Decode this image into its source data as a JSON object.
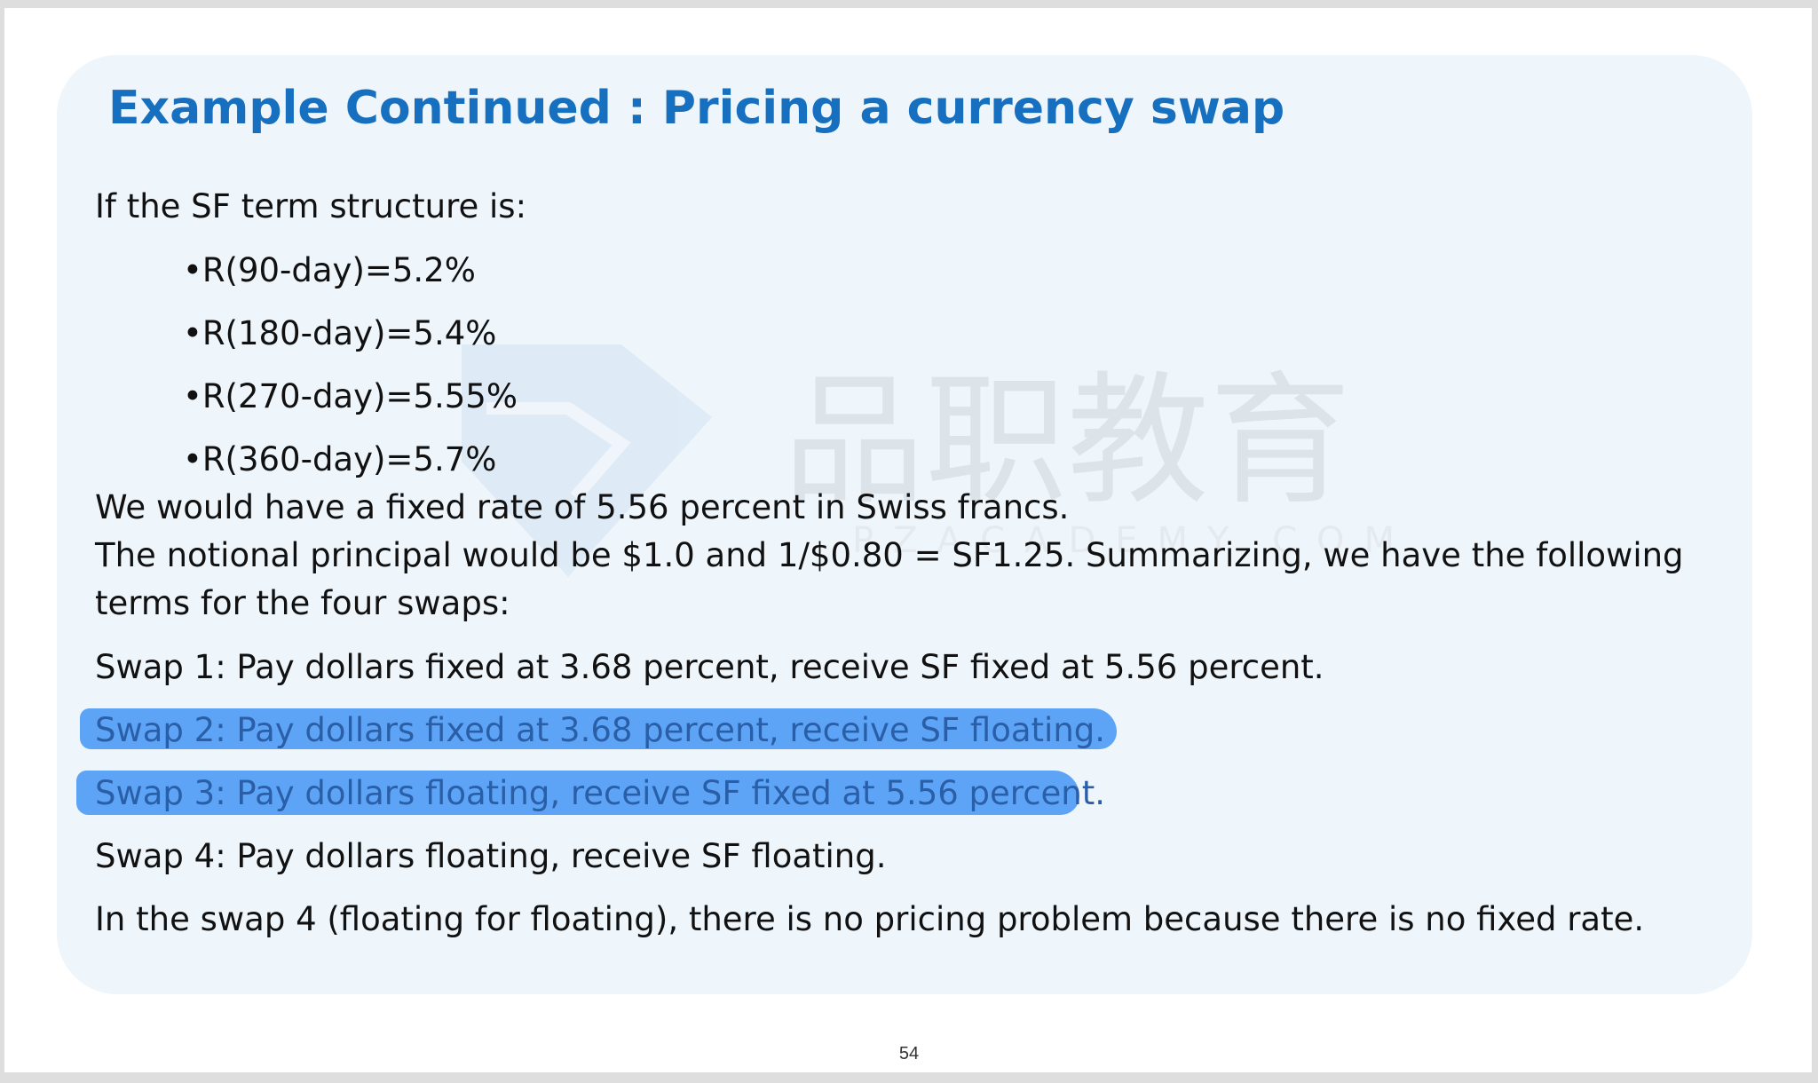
{
  "slide": {
    "title": "Example Continued : Pricing a currency swap",
    "intro": "If the SF term structure is:",
    "rates": [
      "•R(90-day)=5.2%",
      "•R(180-day)=5.4%",
      "•R(270-day)=5.55%",
      "•R(360-day)=5.7%"
    ],
    "fixed_rate_text": "We would have a fixed rate of 5.56 percent in Swiss francs.",
    "notional_line1": "The notional principal would be $1.0 and 1/$0.80 = SF1.25. Summarizing, we have the following",
    "notional_line2": "terms for the four swaps:",
    "swaps": [
      "Swap 1: Pay dollars fixed at 3.68 percent, receive SF fixed at 5.56 percent.",
      "Swap 2: Pay dollars fixed at 3.68 percent, receive SF floating.",
      "Swap 3: Pay dollars floating, receive SF fixed at 5.56 percent.",
      "Swap 4: Pay dollars floating, receive SF floating."
    ],
    "conclusion": "In the swap 4 (floating for floating), there is no pricing problem because there is no fixed rate.",
    "page_number": "54"
  },
  "watermark": {
    "text": "品职教育",
    "subtext": "PZACADEMY.COM"
  },
  "colors": {
    "title": "#1670bf",
    "card_background": "#eef5fb",
    "highlight": "#3d93f5",
    "body_text": "#111111"
  }
}
